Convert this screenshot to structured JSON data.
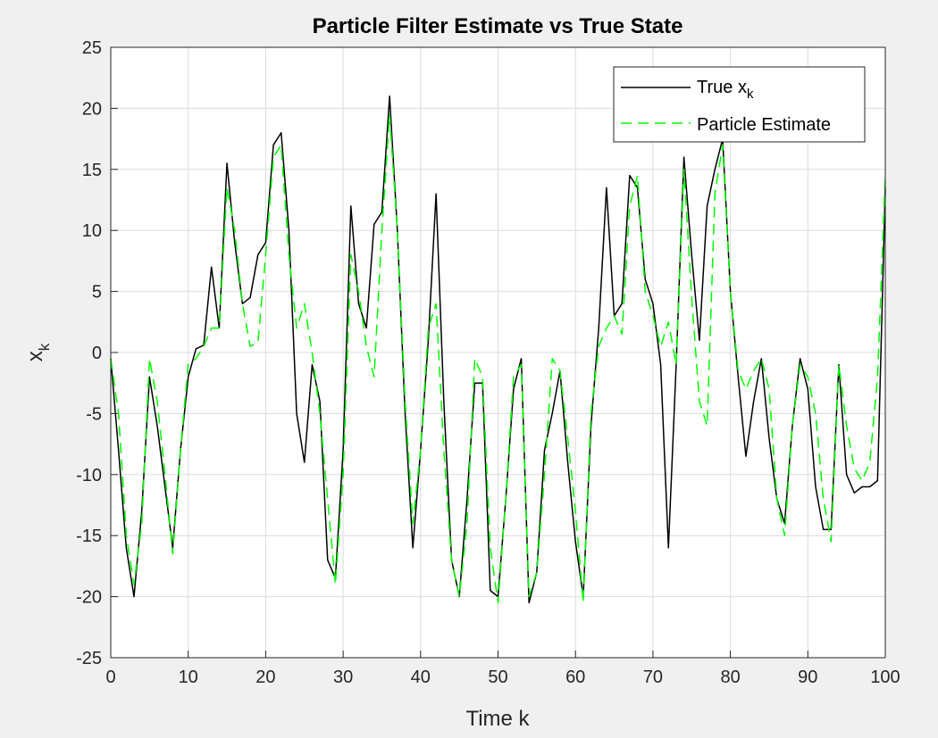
{
  "chart_data": {
    "type": "line",
    "title": "Particle Filter Estimate vs True State",
    "xlabel": "Time k",
    "ylabel": "x",
    "ylabel_subscript": "k",
    "xlim": [
      0,
      100
    ],
    "ylim": [
      -25,
      25
    ],
    "xticks": [
      0,
      10,
      20,
      30,
      40,
      50,
      60,
      70,
      80,
      90,
      100
    ],
    "yticks": [
      -25,
      -20,
      -15,
      -10,
      -5,
      0,
      5,
      10,
      15,
      20,
      25
    ],
    "grid": true,
    "legend_position": "top-right",
    "x": [
      0,
      1,
      2,
      3,
      4,
      5,
      6,
      7,
      8,
      9,
      10,
      11,
      12,
      13,
      14,
      15,
      16,
      17,
      18,
      19,
      20,
      21,
      22,
      23,
      24,
      25,
      26,
      27,
      28,
      29,
      30,
      31,
      32,
      33,
      34,
      35,
      36,
      37,
      38,
      39,
      40,
      41,
      42,
      43,
      44,
      45,
      46,
      47,
      48,
      49,
      50,
      51,
      52,
      53,
      54,
      55,
      56,
      57,
      58,
      59,
      60,
      61,
      62,
      63,
      64,
      65,
      66,
      67,
      68,
      69,
      70,
      71,
      72,
      73,
      74,
      75,
      76,
      77,
      78,
      79,
      80,
      81,
      82,
      83,
      84,
      85,
      86,
      87,
      88,
      89,
      90,
      91,
      92,
      93,
      94,
      95,
      96,
      97,
      98,
      99,
      100
    ],
    "series": [
      {
        "name": "True x",
        "name_subscript": "k",
        "color": "#000000",
        "dash": "solid",
        "values": [
          -0.5,
          -8,
          -16,
          -20,
          -13,
          -2,
          -6,
          -11,
          -16,
          -8,
          -2,
          0.3,
          0.6,
          7,
          2,
          15.5,
          9,
          4,
          4.5,
          8,
          9,
          17,
          18,
          10,
          -5,
          -9,
          -1,
          -4,
          -17,
          -18.5,
          -8,
          12,
          4,
          2,
          10.5,
          11.5,
          21,
          10,
          -5,
          -16,
          -8,
          1,
          13,
          -4,
          -17,
          -20,
          -12,
          -2.5,
          -2.5,
          -19.5,
          -20,
          -12,
          -3,
          -0.5,
          -20.5,
          -18,
          -8,
          -5,
          -1.5,
          -9,
          -15.5,
          -20,
          -6,
          2,
          13.5,
          3,
          4,
          14.5,
          13.5,
          6,
          4,
          -1,
          -16,
          -1,
          16,
          8,
          1,
          12,
          15,
          17.5,
          5,
          -2,
          -8.5,
          -4,
          -0.5,
          -7,
          -12,
          -14,
          -6,
          -0.5,
          -3,
          -11,
          -14.5,
          -14.5,
          -1,
          -10,
          -11.5,
          -11,
          -11,
          -10.5,
          13.5
        ]
      },
      {
        "name": "Particle Estimate",
        "color": "#00ff00",
        "dash": "dashed",
        "values": [
          -0.5,
          -5,
          -15,
          -19,
          -14,
          -0.5,
          -4,
          -10,
          -16.5,
          -8,
          -1,
          -0.5,
          0.5,
          2,
          2,
          13.5,
          10,
          4,
          0.5,
          0.8,
          8,
          16,
          17,
          8,
          2,
          4,
          0,
          -5,
          -12,
          -19,
          -10,
          8,
          5,
          0.5,
          -2,
          10,
          19.5,
          10,
          -4,
          -14,
          -8,
          2,
          4,
          -8,
          -17,
          -20,
          -14,
          -0.5,
          -2,
          -16,
          -20.5,
          -12,
          -2,
          -1,
          -20,
          -18,
          -10,
          -0.5,
          -1.5,
          -7,
          -13,
          -20.5,
          -5,
          0.5,
          2,
          3,
          1.5,
          12,
          14.5,
          5,
          3,
          0.5,
          2.5,
          -1,
          15,
          4.5,
          -4,
          -6,
          13,
          17,
          5,
          -1.5,
          -3,
          -1.5,
          -0.5,
          -3,
          -12,
          -15,
          -6,
          -1,
          -2,
          -5,
          -12,
          -15.5,
          -1,
          -6,
          -9.5,
          -10.5,
          -9,
          -2,
          14.5
        ]
      }
    ]
  }
}
